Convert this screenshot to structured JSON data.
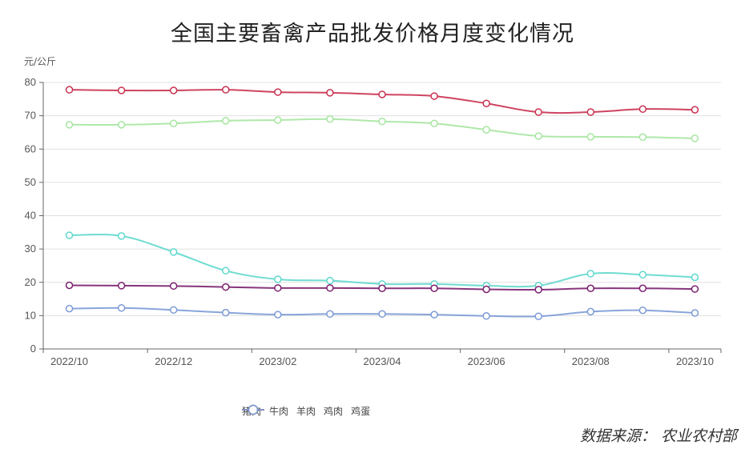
{
  "title": "全国主要畜禽产品批发价格月度变化情况",
  "unit_label": "元/公斤",
  "source": "数据来源：  农业农村部",
  "chart_data": {
    "type": "line",
    "title": "全国主要畜禽产品批发价格月度变化情况",
    "xlabel": "",
    "ylabel": "元/公斤",
    "ylim": [
      0,
      80
    ],
    "yticks": [
      0,
      10,
      20,
      30,
      40,
      50,
      60,
      70,
      80
    ],
    "grid": true,
    "legend_position": "bottom",
    "x_tick_labels": [
      "2022/10",
      "2022/12",
      "2023/02",
      "2023/04",
      "2023/06",
      "2023/08",
      "2023/10"
    ],
    "x": [
      "2022/10",
      "2022/11",
      "2022/12",
      "2023/01",
      "2023/02",
      "2023/03",
      "2023/04",
      "2023/05",
      "2023/06",
      "2023/07",
      "2023/08",
      "2023/09",
      "2023/10"
    ],
    "series": [
      {
        "name": "猪肉",
        "color": "#5fd8cc",
        "values": [
          34.1,
          33.9,
          29.1,
          23.5,
          20.9,
          20.5,
          19.5,
          19.5,
          19.0,
          19.0,
          22.6,
          22.3,
          21.5
        ]
      },
      {
        "name": "牛肉",
        "color": "#c9304f",
        "values": [
          77.8,
          77.6,
          77.6,
          77.8,
          77.1,
          76.9,
          76.4,
          75.9,
          73.7,
          71.1,
          71.1,
          72.0,
          71.8
        ]
      },
      {
        "name": "羊肉",
        "color": "#a6e6a0",
        "values": [
          67.3,
          67.3,
          67.7,
          68.5,
          68.7,
          69.0,
          68.3,
          67.7,
          65.8,
          63.9,
          63.7,
          63.6,
          63.2
        ]
      },
      {
        "name": "鸡肉",
        "color": "#7a1f6e",
        "values": [
          19.1,
          19.0,
          18.9,
          18.6,
          18.3,
          18.3,
          18.2,
          18.2,
          17.9,
          17.8,
          18.2,
          18.2,
          18.0
        ]
      },
      {
        "name": "鸡蛋",
        "color": "#7c9bd6",
        "values": [
          12.1,
          12.3,
          11.7,
          10.9,
          10.3,
          10.5,
          10.5,
          10.3,
          9.9,
          9.8,
          11.2,
          11.6,
          10.8
        ]
      }
    ]
  }
}
